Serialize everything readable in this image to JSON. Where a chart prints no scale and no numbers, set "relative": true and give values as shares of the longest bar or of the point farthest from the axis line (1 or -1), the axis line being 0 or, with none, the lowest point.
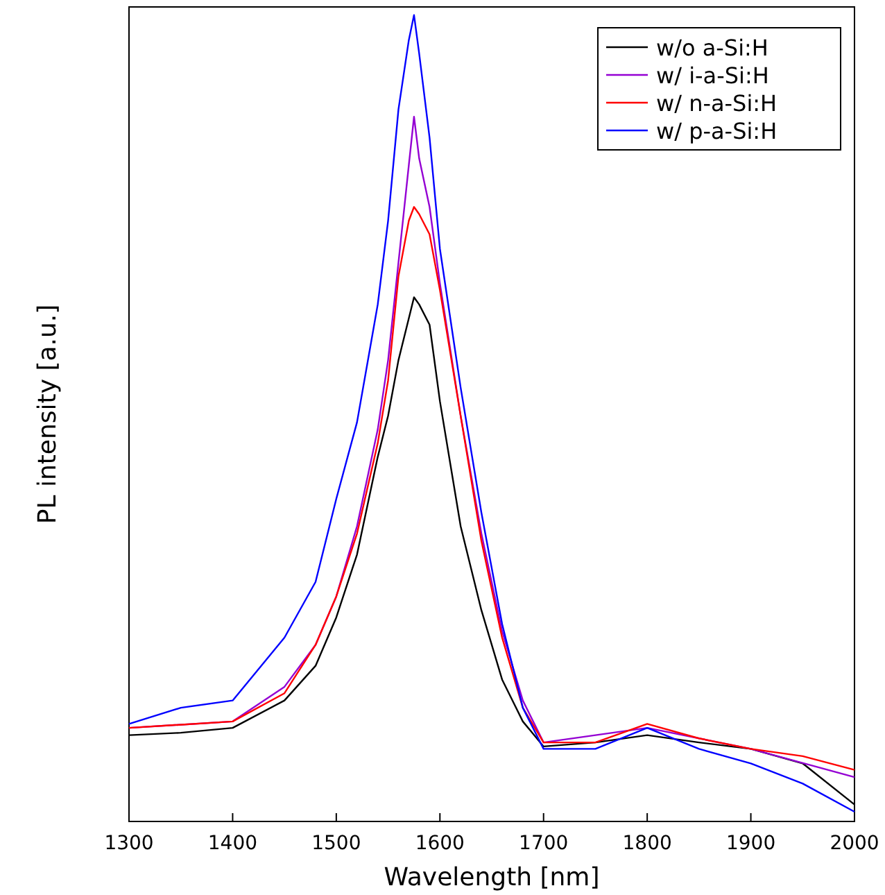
{
  "chart_data": {
    "type": "line",
    "xlabel": "Wavelength [nm]",
    "ylabel": "PL intensity [a.u.]",
    "relative": true,
    "xlim": [
      1300,
      2000
    ],
    "xticks": [
      1300,
      1400,
      1500,
      1600,
      1700,
      1800,
      1900,
      2000
    ],
    "grid": false,
    "legend": "top right",
    "marker": "none",
    "line_style": "solid",
    "series": [
      {
        "name": "w/o a-Si:H",
        "color": "#000000",
        "x": [
          1300,
          1350,
          1400,
          1450,
          1480,
          1500,
          1520,
          1540,
          1550,
          1560,
          1570,
          1575,
          1580,
          1590,
          1600,
          1620,
          1640,
          1660,
          1680,
          1700,
          1750,
          1800,
          1850,
          1900,
          1950,
          2000
        ],
        "values": [
          0.107,
          0.11,
          0.116,
          0.15,
          0.193,
          0.253,
          0.331,
          0.452,
          0.503,
          0.572,
          0.624,
          0.65,
          0.641,
          0.616,
          0.521,
          0.366,
          0.262,
          0.176,
          0.124,
          0.093,
          0.098,
          0.107,
          0.098,
          0.09,
          0.072,
          0.021
        ]
      },
      {
        "name": "w/ i-a-Si:H",
        "color": "#9400d3",
        "x": [
          1300,
          1400,
          1450,
          1480,
          1500,
          1520,
          1540,
          1550,
          1560,
          1570,
          1575,
          1580,
          1590,
          1600,
          1620,
          1640,
          1660,
          1680,
          1700,
          1800,
          1900,
          2000
        ],
        "values": [
          0.116,
          0.124,
          0.167,
          0.219,
          0.279,
          0.366,
          0.486,
          0.572,
          0.693,
          0.814,
          0.874,
          0.822,
          0.762,
          0.667,
          0.503,
          0.357,
          0.236,
          0.15,
          0.098,
          0.116,
          0.09,
          0.055
        ]
      },
      {
        "name": "w/ n-a-Si:H",
        "color": "#ff0000",
        "x": [
          1300,
          1400,
          1450,
          1480,
          1500,
          1520,
          1540,
          1550,
          1560,
          1570,
          1575,
          1580,
          1590,
          1600,
          1620,
          1640,
          1660,
          1680,
          1700,
          1750,
          1800,
          1850,
          1900,
          1950,
          2000
        ],
        "values": [
          0.116,
          0.124,
          0.159,
          0.219,
          0.279,
          0.357,
          0.469,
          0.547,
          0.676,
          0.745,
          0.762,
          0.753,
          0.728,
          0.659,
          0.503,
          0.348,
          0.228,
          0.141,
          0.098,
          0.098,
          0.121,
          0.103,
          0.09,
          0.081,
          0.064
        ]
      },
      {
        "name": "w/ p-a-Si:H",
        "color": "#0000ff",
        "x": [
          1300,
          1350,
          1400,
          1450,
          1480,
          1500,
          1520,
          1540,
          1550,
          1560,
          1570,
          1575,
          1580,
          1590,
          1600,
          1620,
          1640,
          1660,
          1680,
          1700,
          1750,
          1800,
          1850,
          1900,
          1950,
          2000
        ],
        "values": [
          0.121,
          0.141,
          0.15,
          0.228,
          0.297,
          0.4,
          0.495,
          0.641,
          0.745,
          0.883,
          0.969,
          1,
          0.952,
          0.848,
          0.71,
          0.538,
          0.383,
          0.245,
          0.141,
          0.09,
          0.09,
          0.116,
          0.09,
          0.072,
          0.047,
          0.012
        ]
      }
    ]
  }
}
